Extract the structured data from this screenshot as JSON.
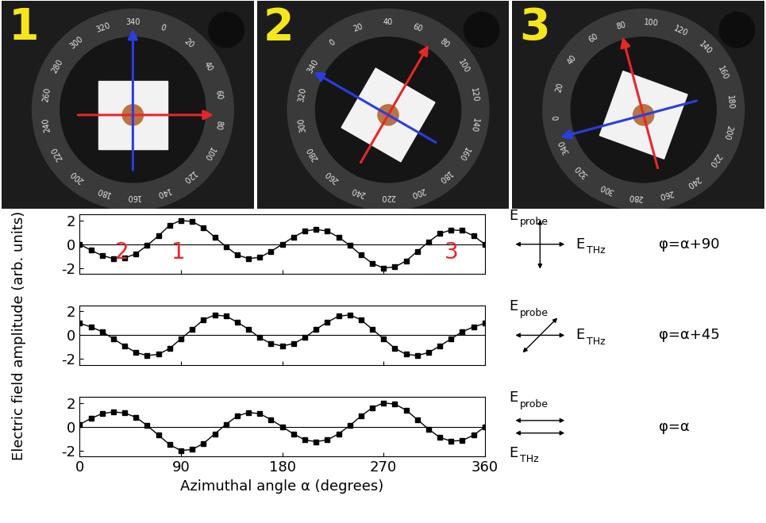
{
  "photos": [
    {
      "number": "1",
      "dial_labels": [
        0,
        20,
        40,
        60,
        80,
        100,
        120,
        140,
        160,
        180,
        200,
        220,
        240,
        260,
        280,
        300,
        320,
        340
      ]
    },
    {
      "number": "2",
      "dial_labels": [
        0,
        20,
        40,
        60,
        80,
        100,
        120,
        140,
        160,
        180,
        200,
        220,
        240,
        260,
        280,
        300,
        320,
        340
      ]
    },
    {
      "number": "3",
      "dial_labels": [
        0,
        20,
        40,
        60,
        80,
        100,
        120,
        140,
        160,
        180,
        200,
        220,
        240,
        260,
        280,
        300,
        320,
        340
      ]
    }
  ],
  "y_label": "Electric field amplitude (arb. units)",
  "chart_data": [
    {
      "type": "line",
      "marker": "square",
      "line_style": "solid",
      "color": "#000000",
      "x": [
        0,
        10,
        20,
        30,
        40,
        50,
        60,
        70,
        80,
        90,
        100,
        110,
        120,
        130,
        140,
        150,
        160,
        170,
        180,
        190,
        200,
        210,
        220,
        230,
        240,
        250,
        260,
        270,
        280,
        290,
        300,
        310,
        320,
        330,
        340,
        350,
        360
      ],
      "values": [
        0,
        -0.5,
        -0.95,
        -1.2,
        -1.15,
        -0.8,
        -0.1,
        0.7,
        1.6,
        2.0,
        1.9,
        1.4,
        0.6,
        -0.2,
        -0.9,
        -1.2,
        -1.1,
        -0.6,
        0,
        0.6,
        1.1,
        1.25,
        1.1,
        0.6,
        -0.1,
        -0.9,
        -1.6,
        -2.0,
        -1.9,
        -1.4,
        -0.6,
        0.2,
        0.9,
        1.2,
        1.15,
        0.7,
        0
      ],
      "xlim": [
        0,
        360
      ],
      "xticks": [
        0,
        90,
        180,
        270,
        360
      ],
      "ylim": [
        -2.5,
        2.5
      ],
      "yticks": [
        -2,
        0,
        2
      ],
      "tick_labels": "y",
      "annotations": [
        {
          "text": "2",
          "x": 38
        },
        {
          "text": "1",
          "x": 88
        },
        {
          "text": "3",
          "x": 330
        }
      ],
      "probe_label": {
        "main": "E",
        "sub": "probe"
      },
      "thz_label": {
        "main": "E",
        "sub": "THz"
      },
      "probe_angle": 90,
      "relation": "φ=α+90"
    },
    {
      "type": "line",
      "marker": "square",
      "line_style": "solid",
      "color": "#000000",
      "x": [
        0,
        10,
        20,
        30,
        40,
        50,
        60,
        70,
        80,
        90,
        100,
        110,
        120,
        130,
        140,
        150,
        160,
        170,
        180,
        190,
        200,
        210,
        220,
        230,
        240,
        250,
        260,
        270,
        280,
        290,
        300,
        310,
        320,
        330,
        340,
        350,
        360
      ],
      "values": [
        1.0,
        0.7,
        0.3,
        -0.3,
        -0.9,
        -1.45,
        -1.7,
        -1.6,
        -1.1,
        -0.3,
        0.5,
        1.3,
        1.7,
        1.6,
        1.1,
        0.5,
        -0.2,
        -0.7,
        -0.9,
        -0.7,
        -0.2,
        0.5,
        1.1,
        1.6,
        1.7,
        1.3,
        0.5,
        -0.3,
        -1.1,
        -1.6,
        -1.7,
        -1.45,
        -0.9,
        -0.3,
        0.3,
        0.7,
        1.0
      ],
      "xlim": [
        0,
        360
      ],
      "xticks": [
        0,
        90,
        180,
        270,
        360
      ],
      "ylim": [
        -2.5,
        2.5
      ],
      "yticks": [
        -2,
        0,
        2
      ],
      "tick_labels": "y",
      "probe_label": {
        "main": "E",
        "sub": "probe"
      },
      "thz_label": {
        "main": "E",
        "sub": "THz"
      },
      "probe_angle": 45,
      "relation": "φ=α+45"
    },
    {
      "type": "line",
      "marker": "square",
      "line_style": "solid",
      "color": "#000000",
      "x": [
        0,
        10,
        20,
        30,
        40,
        50,
        60,
        70,
        80,
        90,
        100,
        110,
        120,
        130,
        140,
        150,
        160,
        170,
        180,
        190,
        200,
        210,
        220,
        230,
        240,
        250,
        260,
        270,
        280,
        290,
        300,
        310,
        320,
        330,
        340,
        350,
        360
      ],
      "values": [
        0.2,
        0.7,
        1.1,
        1.25,
        1.15,
        0.8,
        0.1,
        -0.7,
        -1.5,
        -2.0,
        -1.9,
        -1.4,
        -0.6,
        0.2,
        0.9,
        1.2,
        1.1,
        0.6,
        0,
        -0.6,
        -1.1,
        -1.25,
        -1.1,
        -0.6,
        0.1,
        0.9,
        1.6,
        2.0,
        1.9,
        1.4,
        0.6,
        -0.2,
        -0.9,
        -1.2,
        -1.15,
        -0.7,
        0
      ],
      "xlim": [
        0,
        360
      ],
      "xticks": [
        0,
        90,
        180,
        270,
        360
      ],
      "ylim": [
        -2.5,
        2.5
      ],
      "yticks": [
        -2,
        0,
        2
      ],
      "x_label": "Azimuthal angle α (degrees)",
      "probe_label": {
        "main": "E",
        "sub": "probe"
      },
      "thz_label": {
        "main": "E",
        "sub": "THz"
      },
      "probe_angle": 0,
      "relation": "φ=α"
    }
  ]
}
